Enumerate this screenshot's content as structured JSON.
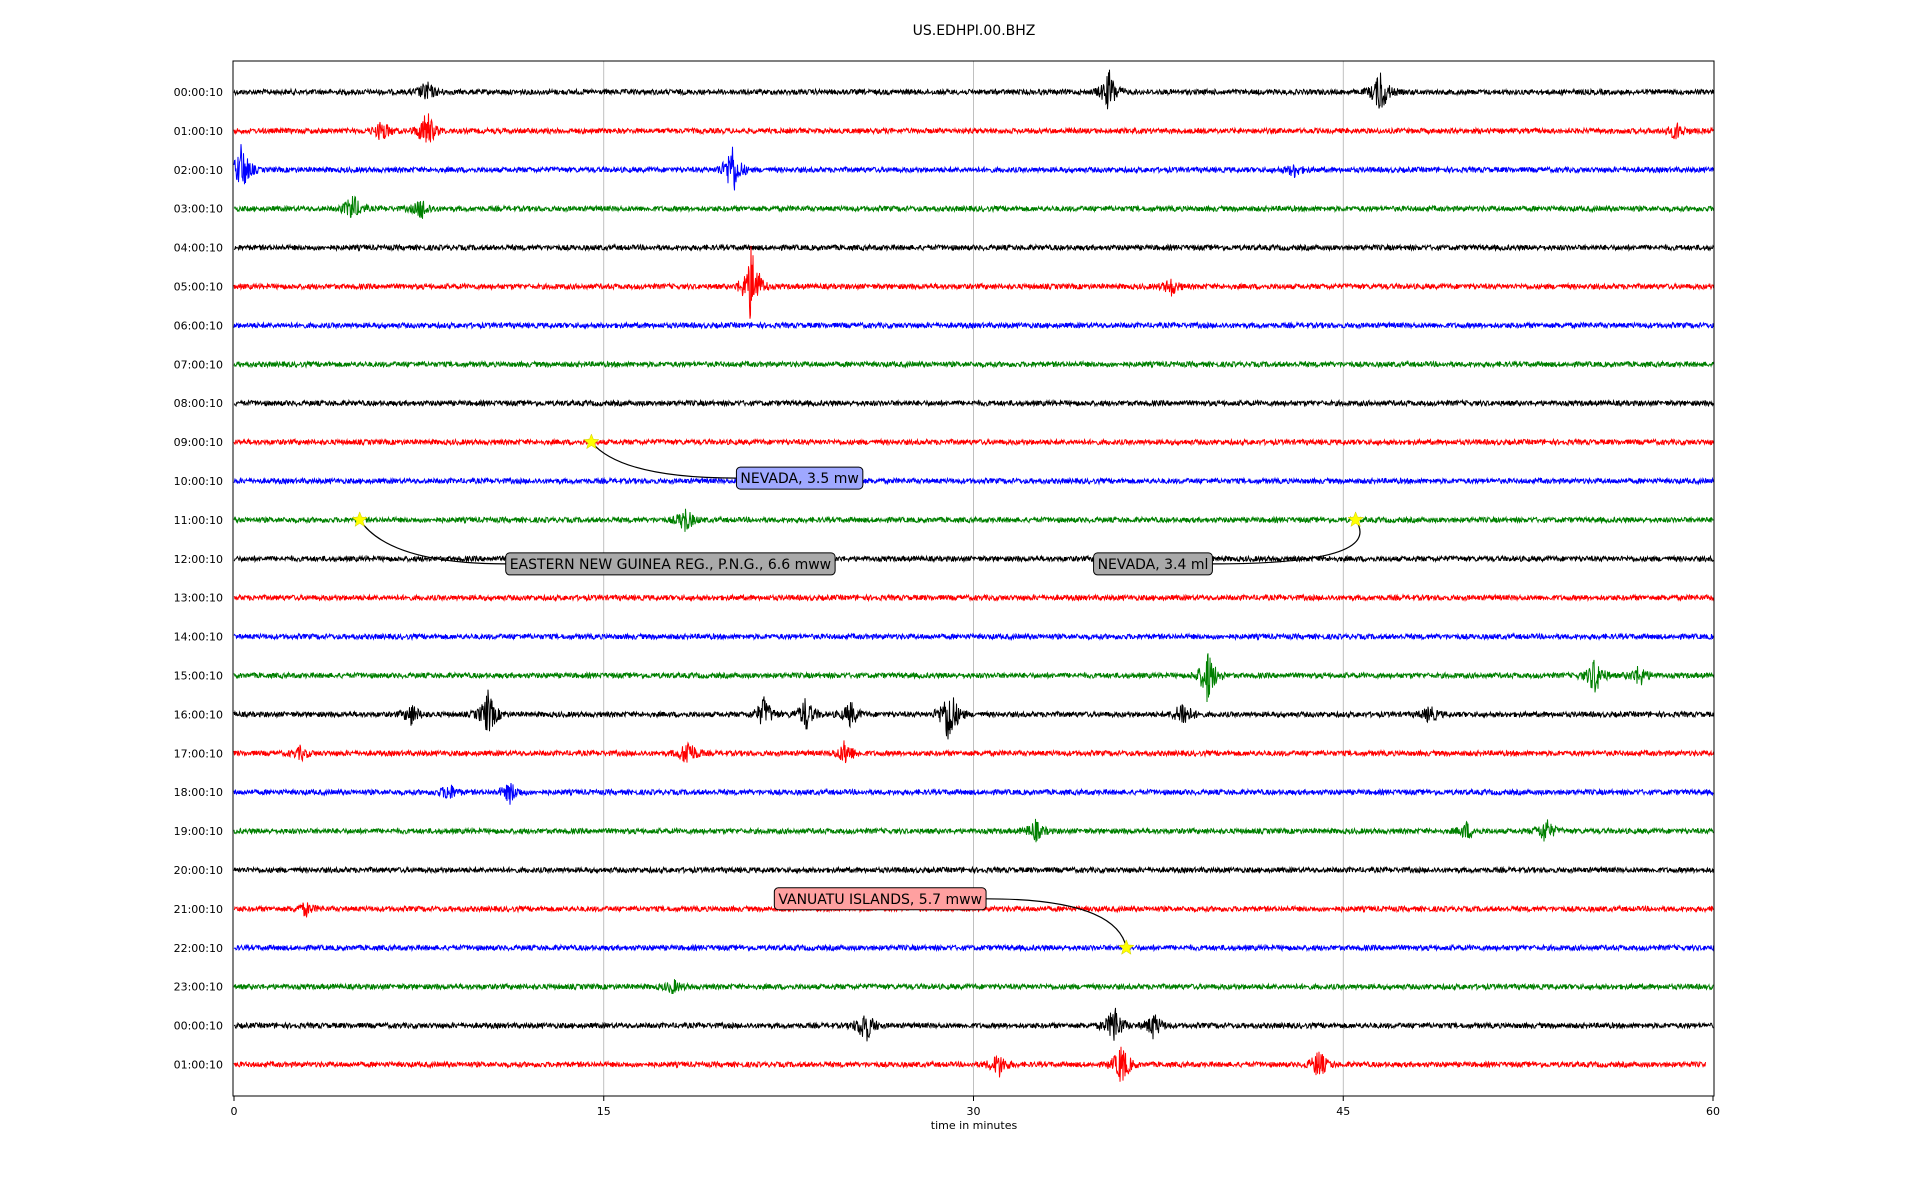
{
  "chart_data": {
    "type": "line",
    "title": "US.EDHPI.00.BHZ",
    "xlabel": "time in minutes",
    "ylabel": "",
    "xlim": [
      0,
      60
    ],
    "x_ticks": [
      "0",
      "15",
      "30",
      "45",
      "60"
    ],
    "grid": "vertical",
    "row_labels": [
      "00:00:10",
      "01:00:10",
      "02:00:10",
      "03:00:10",
      "04:00:10",
      "05:00:10",
      "06:00:10",
      "07:00:10",
      "08:00:10",
      "09:00:10",
      "10:00:10",
      "11:00:10",
      "12:00:10",
      "13:00:10",
      "14:00:10",
      "15:00:10",
      "16:00:10",
      "17:00:10",
      "18:00:10",
      "19:00:10",
      "20:00:10",
      "21:00:10",
      "22:00:10",
      "23:00:10",
      "00:00:10",
      "01:00:10"
    ],
    "row_colors": [
      "#000000",
      "#ff0000",
      "#0000ff",
      "#008000"
    ],
    "events": [
      {
        "label": "NEVADA, 3.5 mw",
        "row": 9,
        "minute": 14.5,
        "box_color": "#9fa8ff"
      },
      {
        "label": "EASTERN NEW GUINEA REG., P.N.G., 6.6 mww",
        "row": 11,
        "minute": 5.1,
        "box_color": "#a9a9a9"
      },
      {
        "label": "NEVADA, 3.4 ml",
        "row": 11,
        "minute": 45.5,
        "box_color": "#a9a9a9"
      },
      {
        "label": "VANUATU ISLANDS, 5.7 mww",
        "row": 22,
        "minute": 36.2,
        "box_color": "#ffa0a0"
      }
    ],
    "star_color": "#ffff00",
    "bursts": [
      {
        "row": 0,
        "minute": 35.5,
        "amp": 1.0
      },
      {
        "row": 0,
        "minute": 46.5,
        "amp": 1.1
      },
      {
        "row": 0,
        "minute": 7.8,
        "amp": 0.5
      },
      {
        "row": 1,
        "minute": 7.8,
        "amp": 1.0
      },
      {
        "row": 1,
        "minute": 6.0,
        "amp": 0.5
      },
      {
        "row": 1,
        "minute": 58.5,
        "amp": 0.4
      },
      {
        "row": 2,
        "minute": 20.2,
        "amp": 1.3
      },
      {
        "row": 2,
        "minute": 0.3,
        "amp": 1.2
      },
      {
        "row": 2,
        "minute": 43.0,
        "amp": 0.3
      },
      {
        "row": 3,
        "minute": 4.8,
        "amp": 0.7
      },
      {
        "row": 3,
        "minute": 7.6,
        "amp": 0.5
      },
      {
        "row": 5,
        "minute": 21.0,
        "amp": 2.0
      },
      {
        "row": 5,
        "minute": 38.0,
        "amp": 0.4
      },
      {
        "row": 11,
        "minute": 18.3,
        "amp": 0.6
      },
      {
        "row": 15,
        "minute": 39.5,
        "amp": 1.3
      },
      {
        "row": 15,
        "minute": 55.2,
        "amp": 0.9
      },
      {
        "row": 15,
        "minute": 57.0,
        "amp": 0.5
      },
      {
        "row": 16,
        "minute": 29.0,
        "amp": 1.6
      },
      {
        "row": 16,
        "minute": 10.3,
        "amp": 1.1
      },
      {
        "row": 16,
        "minute": 21.5,
        "amp": 0.8
      },
      {
        "row": 16,
        "minute": 23.2,
        "amp": 0.8
      },
      {
        "row": 16,
        "minute": 38.5,
        "amp": 0.7
      },
      {
        "row": 16,
        "minute": 7.2,
        "amp": 0.5
      },
      {
        "row": 16,
        "minute": 25.0,
        "amp": 0.6
      },
      {
        "row": 16,
        "minute": 48.5,
        "amp": 0.4
      },
      {
        "row": 17,
        "minute": 18.4,
        "amp": 0.7
      },
      {
        "row": 17,
        "minute": 24.8,
        "amp": 0.6
      },
      {
        "row": 17,
        "minute": 2.7,
        "amp": 0.3
      },
      {
        "row": 18,
        "minute": 8.7,
        "amp": 0.4
      },
      {
        "row": 18,
        "minute": 11.2,
        "amp": 0.5
      },
      {
        "row": 19,
        "minute": 32.5,
        "amp": 0.5
      },
      {
        "row": 19,
        "minute": 53.2,
        "amp": 0.6
      },
      {
        "row": 19,
        "minute": 50.0,
        "amp": 0.4
      },
      {
        "row": 21,
        "minute": 2.9,
        "amp": 0.3
      },
      {
        "row": 23,
        "minute": 17.8,
        "amp": 0.3
      },
      {
        "row": 24,
        "minute": 25.6,
        "amp": 0.9
      },
      {
        "row": 24,
        "minute": 35.7,
        "amp": 1.0
      },
      {
        "row": 24,
        "minute": 37.3,
        "amp": 0.6
      },
      {
        "row": 25,
        "minute": 31.0,
        "amp": 0.6
      },
      {
        "row": 25,
        "minute": 36.0,
        "amp": 1.0
      },
      {
        "row": 25,
        "minute": 44.0,
        "amp": 0.7
      }
    ],
    "last_row_end_minute": 59.7
  }
}
